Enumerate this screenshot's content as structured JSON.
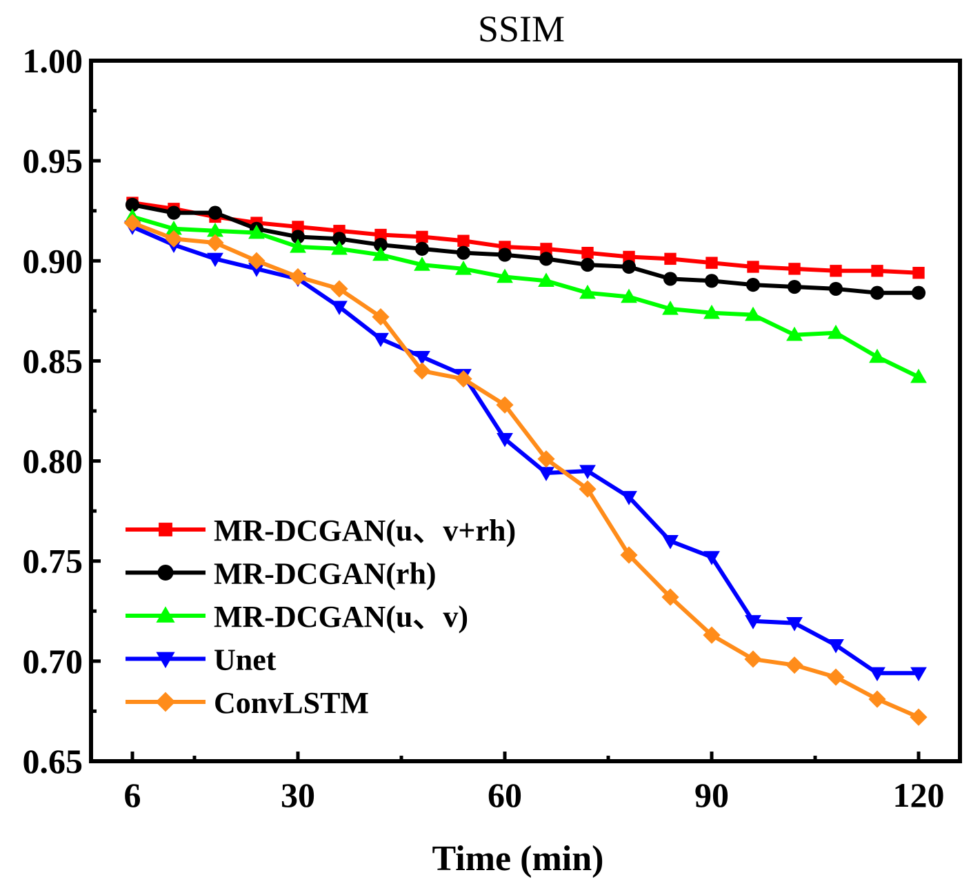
{
  "chart_data": {
    "type": "line",
    "title": "SSIM",
    "xlabel": "Time (min)",
    "ylabel": "",
    "xlim": [
      0,
      126
    ],
    "ylim": [
      0.65,
      1.0
    ],
    "xticks": [
      6,
      30,
      60,
      90,
      120
    ],
    "xtick_labels": [
      "6",
      "30",
      "60",
      "90",
      "120"
    ],
    "yticks": [
      0.65,
      0.7,
      0.75,
      0.8,
      0.85,
      0.9,
      0.95,
      1.0
    ],
    "ytick_labels": [
      "0.65",
      "0.70",
      "0.75",
      "0.80",
      "0.85",
      "0.90",
      "0.95",
      "1.00"
    ],
    "x": [
      6,
      12,
      18,
      24,
      30,
      36,
      42,
      48,
      54,
      60,
      66,
      72,
      78,
      84,
      90,
      96,
      102,
      108,
      114,
      120
    ],
    "legend_position": "lower-left",
    "series": [
      {
        "name": "MR-DCGAN(u、v+rh)",
        "color": "#ff0000",
        "marker": "square",
        "values": [
          0.929,
          0.926,
          0.922,
          0.919,
          0.917,
          0.915,
          0.913,
          0.912,
          0.91,
          0.907,
          0.906,
          0.904,
          0.902,
          0.901,
          0.899,
          0.897,
          0.896,
          0.895,
          0.895,
          0.894
        ]
      },
      {
        "name": "MR-DCGAN(rh)",
        "color": "#000000",
        "marker": "circle",
        "values": [
          0.928,
          0.924,
          0.924,
          0.916,
          0.912,
          0.911,
          0.908,
          0.906,
          0.904,
          0.903,
          0.901,
          0.898,
          0.897,
          0.891,
          0.89,
          0.888,
          0.887,
          0.886,
          0.884,
          0.884
        ]
      },
      {
        "name": "MR-DCGAN(u、v)",
        "color": "#00ff00",
        "marker": "triangle-up",
        "values": [
          0.922,
          0.916,
          0.915,
          0.914,
          0.907,
          0.906,
          0.903,
          0.898,
          0.896,
          0.892,
          0.89,
          0.884,
          0.882,
          0.876,
          0.874,
          0.873,
          0.863,
          0.864,
          0.852,
          0.842
        ]
      },
      {
        "name": "Unet",
        "color": "#0000ff",
        "marker": "triangle-down",
        "values": [
          0.917,
          0.908,
          0.901,
          0.896,
          0.891,
          0.877,
          0.861,
          0.852,
          0.843,
          0.811,
          0.794,
          0.795,
          0.782,
          0.76,
          0.752,
          0.72,
          0.719,
          0.708,
          0.694,
          0.694
        ]
      },
      {
        "name": "ConvLSTM",
        "color": "#ff8c1a",
        "marker": "diamond",
        "values": [
          0.919,
          0.911,
          0.909,
          0.9,
          0.892,
          0.886,
          0.872,
          0.845,
          0.841,
          0.828,
          0.801,
          0.786,
          0.753,
          0.732,
          0.713,
          0.701,
          0.698,
          0.692,
          0.681,
          0.672
        ]
      }
    ]
  }
}
